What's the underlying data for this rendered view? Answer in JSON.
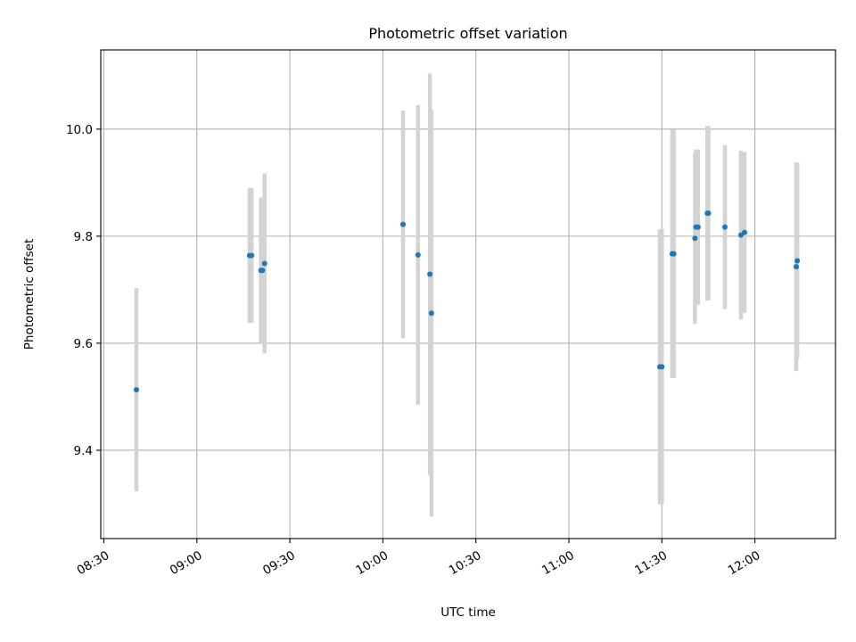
{
  "chart_data": {
    "type": "scatter",
    "title": "Photometric offset variation",
    "xlabel": "UTC time",
    "ylabel": "Photometric offset",
    "x_axis": "time",
    "xlim": [
      "08:29",
      "12:26"
    ],
    "ylim": [
      9.235,
      10.148
    ],
    "grid": true,
    "x_ticks": [
      "08:30",
      "09:00",
      "09:30",
      "10:00",
      "10:30",
      "11:00",
      "11:30",
      "12:00"
    ],
    "y_ticks": [
      9.4,
      9.6,
      9.8,
      10.0
    ],
    "colors": {
      "point": "#1f77b4",
      "errorbar": "#d3d3d3"
    },
    "points": [
      {
        "time": "08:40:30",
        "y": 9.513,
        "err": 0.19
      },
      {
        "time": "09:17:00",
        "y": 9.764,
        "err": 0.126
      },
      {
        "time": "09:17:40",
        "y": 9.764,
        "err": 0.126
      },
      {
        "time": "09:20:40",
        "y": 9.736,
        "err": 0.136
      },
      {
        "time": "09:21:10",
        "y": 9.736,
        "err": 0.136
      },
      {
        "time": "09:21:50",
        "y": 9.749,
        "err": 0.168
      },
      {
        "time": "10:06:30",
        "y": 9.822,
        "err": 0.213
      },
      {
        "time": "10:11:20",
        "y": 9.765,
        "err": 0.28
      },
      {
        "time": "10:15:10",
        "y": 9.729,
        "err": 0.375
      },
      {
        "time": "10:15:40",
        "y": 9.656,
        "err": 0.38
      },
      {
        "time": "11:29:20",
        "y": 9.556,
        "err": 0.257
      },
      {
        "time": "11:30:00",
        "y": 9.556,
        "err": 0.257
      },
      {
        "time": "11:33:20",
        "y": 9.767,
        "err": 0.232
      },
      {
        "time": "11:33:50",
        "y": 9.767,
        "err": 0.232
      },
      {
        "time": "11:40:40",
        "y": 9.796,
        "err": 0.16
      },
      {
        "time": "11:41:00",
        "y": 9.817,
        "err": 0.145
      },
      {
        "time": "11:41:40",
        "y": 9.817,
        "err": 0.145
      },
      {
        "time": "11:44:40",
        "y": 9.843,
        "err": 0.163
      },
      {
        "time": "11:45:00",
        "y": 9.843,
        "err": 0.163
      },
      {
        "time": "11:50:20",
        "y": 9.817,
        "err": 0.153
      },
      {
        "time": "11:55:30",
        "y": 9.802,
        "err": 0.158
      },
      {
        "time": "11:56:40",
        "y": 9.807,
        "err": 0.15
      },
      {
        "time": "12:13:20",
        "y": 9.743,
        "err": 0.195
      },
      {
        "time": "12:13:40",
        "y": 9.754,
        "err": 0.183
      }
    ]
  }
}
